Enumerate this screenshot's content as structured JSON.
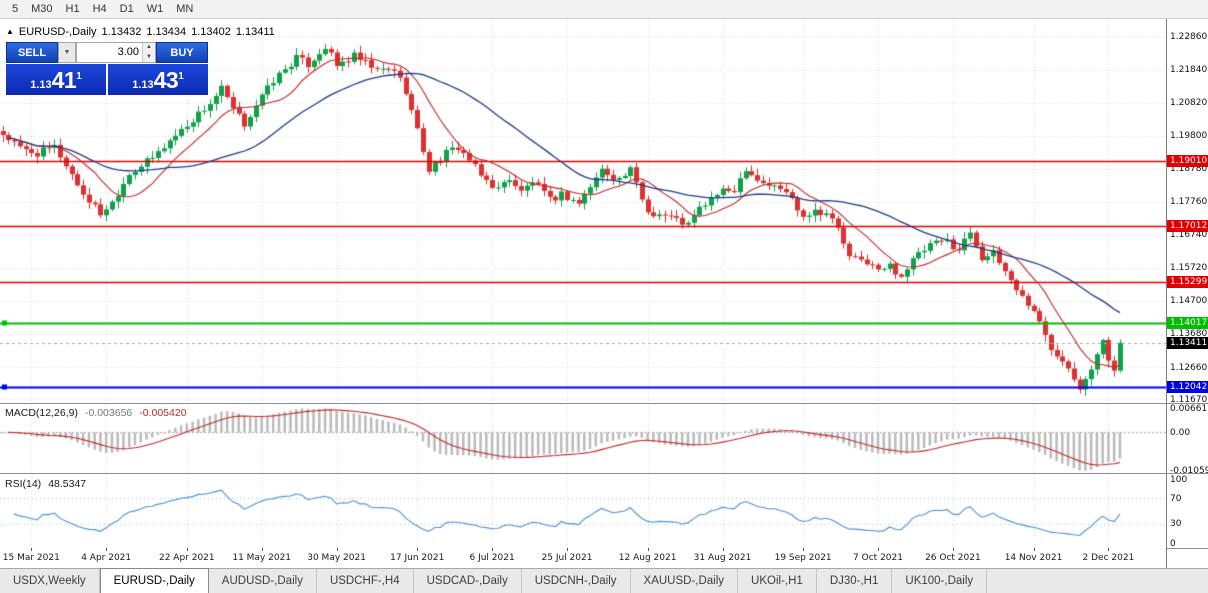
{
  "toolbar": {
    "timeframes": [
      "5",
      "M30",
      "H1",
      "H4",
      "D1",
      "W1",
      "MN"
    ]
  },
  "quote_header": {
    "symbol": "EURUSD-,Daily",
    "open": "1.13432",
    "high": "1.13434",
    "low": "1.13402",
    "close": "1.13411"
  },
  "trade_panel": {
    "sell_label": "SELL",
    "buy_label": "BUY",
    "volume": "3.00",
    "dropdown_icon": "▼",
    "spin_up": "▲",
    "spin_down": "▼",
    "sell_price_prefix": "1.13",
    "sell_price_big": "41",
    "sell_price_sup": "1",
    "buy_price_prefix": "1.13",
    "buy_price_big": "43",
    "buy_price_sup": "1"
  },
  "price_axis": {
    "labels": [
      "1.22860",
      "1.21840",
      "1.20820",
      "1.19800",
      "1.18780",
      "1.17760",
      "1.16740",
      "1.15720",
      "1.14700",
      "1.13680",
      "1.12660",
      "1.11670"
    ]
  },
  "levels": [
    {
      "price": "1.19010",
      "color": "#DF0000",
      "width": 1.3
    },
    {
      "price": "1.17012",
      "color": "#DF0000",
      "width": 1.3
    },
    {
      "price": "1.15299",
      "color": "#DF0000",
      "width": 1.3
    },
    {
      "price": "1.14017",
      "color": "#00BE00",
      "width": 1.8,
      "handle": true
    },
    {
      "price": "1.12042",
      "color": "#0000E6",
      "width": 1.8,
      "handle": true
    }
  ],
  "current_price": {
    "price": "1.13411",
    "color": "#000000"
  },
  "indicators": {
    "macd": {
      "label": "MACD(12,26,9)",
      "main_value": "-0.003656",
      "signal_value": "-0.005420",
      "axis_labels": [
        "0.006611",
        "0.00",
        "-0.010595"
      ]
    },
    "rsi": {
      "label": "RSI(14)",
      "value": "48.5347",
      "axis_labels": [
        "100",
        "70",
        "30",
        "0"
      ],
      "bands": [
        70,
        30
      ]
    }
  },
  "x_axis": {
    "dates": [
      "15 Mar 2021",
      "4 Apr 2021",
      "22 Apr 2021",
      "11 May 2021",
      "30 May 2021",
      "17 Jun 2021",
      "6 Jul 2021",
      "25 Jul 2021",
      "12 Aug 2021",
      "31 Aug 2021",
      "19 Sep 2021",
      "7 Oct 2021",
      "26 Oct 2021",
      "14 Nov 2021",
      "2 Dec 2021"
    ],
    "tick_indices": [
      5,
      18,
      32,
      45,
      58,
      72,
      85,
      98,
      112,
      125,
      139,
      152,
      165,
      179,
      192
    ]
  },
  "tabs": [
    {
      "label": "USDX,Weekly",
      "active": false
    },
    {
      "label": "EURUSD-,Daily",
      "active": true
    },
    {
      "label": "AUDUSD-,Daily",
      "active": false
    },
    {
      "label": "USDCHF-,H4",
      "active": false
    },
    {
      "label": "USDCAD-,Daily",
      "active": false
    },
    {
      "label": "USDCNH-,Daily",
      "active": false
    },
    {
      "label": "XAUUSD-,Daily",
      "active": false
    },
    {
      "label": "UKOil-,H1",
      "active": false
    },
    {
      "label": "DJ30-,H1",
      "active": false
    },
    {
      "label": "UK100-,Daily",
      "active": false
    }
  ],
  "colors": {
    "up": "#12A14B",
    "down": "#DE3030",
    "ma_fast": "#C62828",
    "ma_slow": "#1F3C8C",
    "macd_hist": "#BBBBBB",
    "macd_signal": "#C62828",
    "rsi": "#4C92D9",
    "grid": "#DCDCDC",
    "bid_line": "#ADADAD"
  },
  "chart_data": {
    "type": "candlestick",
    "symbol": "EURUSD-",
    "timeframe": "Daily",
    "last_ohlc": {
      "open": 1.13432,
      "high": 1.13434,
      "low": 1.13402,
      "close": 1.13411
    },
    "candle_count": 195,
    "y_range": [
      1.1155,
      1.234
    ],
    "noise_amp": 0.0012,
    "ma_periods": {
      "fast": 10,
      "slow": 30
    },
    "macd_params": [
      12,
      26,
      9
    ],
    "rsi_period": 14,
    "macd_range": [
      -0.0112,
      0.0075
    ],
    "price_path": [
      [
        0,
        1.1985
      ],
      [
        3,
        1.194
      ],
      [
        6,
        1.1925
      ],
      [
        9,
        1.1945
      ],
      [
        11,
        1.189
      ],
      [
        14,
        1.18
      ],
      [
        17,
        1.174
      ],
      [
        19,
        1.1775
      ],
      [
        22,
        1.1865
      ],
      [
        26,
        1.191
      ],
      [
        29,
        1.1965
      ],
      [
        33,
        1.203
      ],
      [
        36,
        1.208
      ],
      [
        38,
        1.2125
      ],
      [
        40,
        1.206
      ],
      [
        42,
        1.2015
      ],
      [
        44,
        1.2075
      ],
      [
        47,
        1.215
      ],
      [
        51,
        1.222
      ],
      [
        53,
        1.22
      ],
      [
        56,
        1.2255
      ],
      [
        58,
        1.2195
      ],
      [
        61,
        1.2225
      ],
      [
        65,
        1.218
      ],
      [
        68,
        1.2185
      ],
      [
        70,
        1.212
      ],
      [
        72,
        1.1995
      ],
      [
        74,
        1.1875
      ],
      [
        77,
        1.1925
      ],
      [
        79,
        1.1945
      ],
      [
        81,
        1.1905
      ],
      [
        83,
        1.1855
      ],
      [
        86,
        1.1815
      ],
      [
        88,
        1.185
      ],
      [
        90,
        1.1805
      ],
      [
        92,
        1.184
      ],
      [
        95,
        1.178
      ],
      [
        97,
        1.18
      ],
      [
        100,
        1.1772
      ],
      [
        104,
        1.1875
      ],
      [
        107,
        1.1845
      ],
      [
        109,
        1.1872
      ],
      [
        112,
        1.1745
      ],
      [
        115,
        1.1735
      ],
      [
        119,
        1.1705
      ],
      [
        121,
        1.1755
      ],
      [
        124,
        1.18
      ],
      [
        127,
        1.1815
      ],
      [
        129,
        1.1882
      ],
      [
        131,
        1.1845
      ],
      [
        133,
        1.1828
      ],
      [
        136,
        1.1808
      ],
      [
        139,
        1.1735
      ],
      [
        141,
        1.175
      ],
      [
        143,
        1.1742
      ],
      [
        145,
        1.1695
      ],
      [
        147,
        1.1602
      ],
      [
        150,
        1.1592
      ],
      [
        152,
        1.1562
      ],
      [
        154,
        1.1578
      ],
      [
        156,
        1.1548
      ],
      [
        158,
        1.1595
      ],
      [
        161,
        1.1642
      ],
      [
        164,
        1.1655
      ],
      [
        166,
        1.1628
      ],
      [
        168,
        1.1685
      ],
      [
        170,
        1.1605
      ],
      [
        172,
        1.1615
      ],
      [
        174,
        1.1562
      ],
      [
        177,
        1.1482
      ],
      [
        179,
        1.1442
      ],
      [
        182,
        1.1322
      ],
      [
        184,
        1.1295
      ],
      [
        187,
        1.1208
      ],
      [
        189,
        1.1265
      ],
      [
        191,
        1.1342
      ],
      [
        192,
        1.1288
      ],
      [
        193,
        1.1262
      ],
      [
        194,
        1.13411
      ]
    ]
  }
}
